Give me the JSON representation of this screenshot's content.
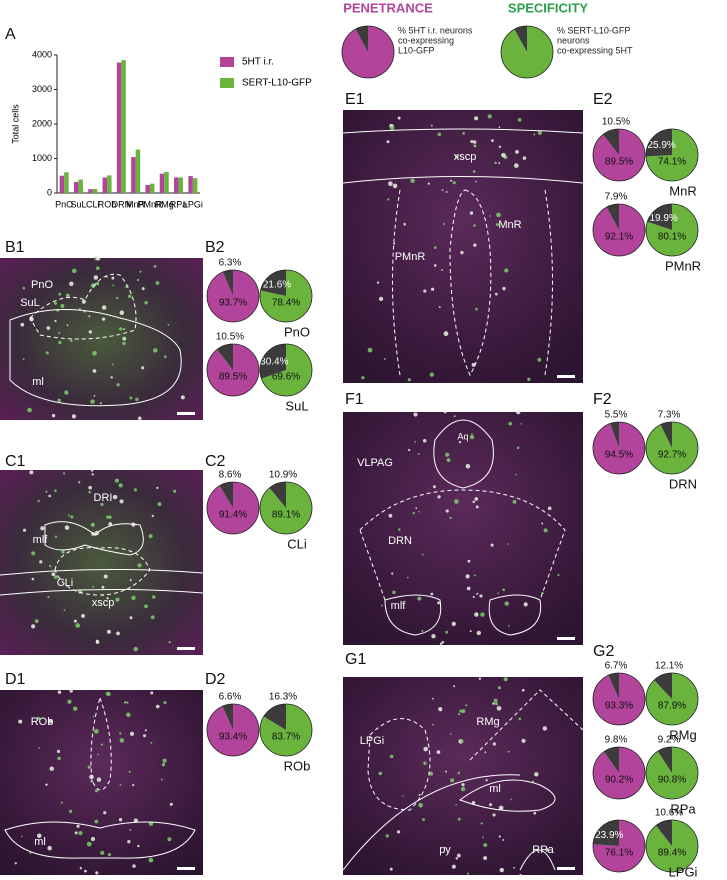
{
  "chart_data": [
    {
      "type": "bar",
      "panel": "A",
      "ylabel": "Total cells",
      "categories": [
        "PnO",
        "SuL",
        "CLi",
        "ROb",
        "DRN",
        "MnR",
        "PMnR",
        "RMg",
        "RPa",
        "LPGi"
      ],
      "series": [
        {
          "name": "5HT i.r.",
          "color": "#b3449b",
          "values": [
            500,
            320,
            110,
            450,
            3780,
            1040,
            230,
            560,
            450,
            490
          ]
        },
        {
          "name": "SERT-L10-GFP",
          "color": "#6ab43e",
          "values": [
            600,
            390,
            115,
            510,
            3850,
            1260,
            270,
            610,
            450,
            430
          ]
        }
      ],
      "ylim": [
        0,
        4000
      ],
      "yticks": [
        0,
        1000,
        2000,
        3000,
        4000
      ]
    },
    {
      "type": "pie-key",
      "title": "PENETRANCE",
      "title_color": "#b3449b",
      "caption": [
        "% 5HT i.r. neurons",
        "co-expressing",
        "L10-GFP"
      ],
      "values": [
        92,
        8
      ],
      "colors": [
        "#b3449b",
        "#3c3c3c"
      ]
    },
    {
      "type": "pie-key",
      "title": "SPECIFICITY",
      "title_color": "#2aa04a",
      "caption": [
        "% SERT-L10-GFP",
        "neurons",
        "co-expressing 5HT"
      ],
      "values": [
        92,
        8
      ],
      "colors": [
        "#6ab43e",
        "#3c3c3c"
      ]
    },
    {
      "type": "pie",
      "panel": "B2",
      "label": "PnO",
      "pies": [
        {
          "values": [
            93.7,
            6.3
          ],
          "value_labels": [
            "93.7%",
            "6.3%"
          ],
          "colors": [
            "#b3449b",
            "#3c3c3c"
          ]
        },
        {
          "values": [
            78.4,
            21.6
          ],
          "value_labels": [
            "78.4%",
            "21.6%"
          ],
          "colors": [
            "#6ab43e",
            "#3c3c3c"
          ]
        }
      ]
    },
    {
      "type": "pie",
      "label": "SuL",
      "pies": [
        {
          "values": [
            89.5,
            10.5
          ],
          "value_labels": [
            "89.5%",
            "10.5%"
          ],
          "colors": [
            "#b3449b",
            "#3c3c3c"
          ]
        },
        {
          "values": [
            69.6,
            30.4
          ],
          "value_labels": [
            "69.6%",
            "30.4%"
          ],
          "colors": [
            "#6ab43e",
            "#3c3c3c"
          ]
        }
      ]
    },
    {
      "type": "pie",
      "panel": "C2",
      "label": "CLi",
      "pies": [
        {
          "values": [
            91.4,
            8.6
          ],
          "value_labels": [
            "91.4%",
            "8.6%"
          ],
          "colors": [
            "#b3449b",
            "#3c3c3c"
          ]
        },
        {
          "values": [
            89.1,
            10.9
          ],
          "value_labels": [
            "89.1%",
            "10.9%"
          ],
          "colors": [
            "#6ab43e",
            "#3c3c3c"
          ]
        }
      ]
    },
    {
      "type": "pie",
      "panel": "D2",
      "label": "ROb",
      "pies": [
        {
          "values": [
            93.4,
            6.6
          ],
          "value_labels": [
            "93.4%",
            "6.6%"
          ],
          "colors": [
            "#b3449b",
            "#3c3c3c"
          ]
        },
        {
          "values": [
            83.7,
            16.3
          ],
          "value_labels": [
            "83.7%",
            "16.3%"
          ],
          "colors": [
            "#6ab43e",
            "#3c3c3c"
          ]
        }
      ]
    },
    {
      "type": "pie",
      "panel": "E2",
      "label": "MnR",
      "pies": [
        {
          "values": [
            89.5,
            10.5
          ],
          "value_labels": [
            "89.5%",
            "10.5%"
          ],
          "colors": [
            "#b3449b",
            "#3c3c3c"
          ]
        },
        {
          "values": [
            74.1,
            25.9
          ],
          "value_labels": [
            "74.1%",
            "25.9%"
          ],
          "colors": [
            "#6ab43e",
            "#3c3c3c"
          ]
        }
      ]
    },
    {
      "type": "pie",
      "label": "PMnR",
      "pies": [
        {
          "values": [
            92.1,
            7.9
          ],
          "value_labels": [
            "92.1%",
            "7.9%"
          ],
          "colors": [
            "#b3449b",
            "#3c3c3c"
          ]
        },
        {
          "values": [
            80.1,
            19.9
          ],
          "value_labels": [
            "80.1%",
            "19.9%"
          ],
          "colors": [
            "#6ab43e",
            "#3c3c3c"
          ]
        }
      ]
    },
    {
      "type": "pie",
      "panel": "F2",
      "label": "DRN",
      "pies": [
        {
          "values": [
            94.5,
            5.5
          ],
          "value_labels": [
            "94.5%",
            "5.5%"
          ],
          "colors": [
            "#b3449b",
            "#3c3c3c"
          ]
        },
        {
          "values": [
            92.7,
            7.3
          ],
          "value_labels": [
            "92.7%",
            "7.3%"
          ],
          "colors": [
            "#6ab43e",
            "#3c3c3c"
          ]
        }
      ]
    },
    {
      "type": "pie",
      "panel": "G2",
      "label": "RMg",
      "pies": [
        {
          "values": [
            93.3,
            6.7
          ],
          "value_labels": [
            "93.3%",
            "6.7%"
          ],
          "colors": [
            "#b3449b",
            "#3c3c3c"
          ]
        },
        {
          "values": [
            87.9,
            12.1
          ],
          "value_labels": [
            "87.9%",
            "12.1%"
          ],
          "colors": [
            "#6ab43e",
            "#3c3c3c"
          ]
        }
      ]
    },
    {
      "type": "pie",
      "label": "RPa",
      "pies": [
        {
          "values": [
            90.2,
            9.8
          ],
          "value_labels": [
            "90.2%",
            "9.8%"
          ],
          "colors": [
            "#b3449b",
            "#3c3c3c"
          ]
        },
        {
          "values": [
            90.8,
            9.2
          ],
          "value_labels": [
            "90.8%",
            "9.2%"
          ],
          "colors": [
            "#6ab43e",
            "#3c3c3c"
          ]
        }
      ]
    },
    {
      "type": "pie",
      "label": "LPGi",
      "pies": [
        {
          "values": [
            76.1,
            23.9
          ],
          "value_labels": [
            "76.1%",
            "23.9%"
          ],
          "colors": [
            "#b3449b",
            "#3c3c3c"
          ]
        },
        {
          "values": [
            89.4,
            10.6
          ],
          "value_labels": [
            "89.4%",
            "10.6%"
          ],
          "colors": [
            "#6ab43e",
            "#3c3c3c"
          ]
        }
      ]
    }
  ],
  "images": [
    {
      "panel": "B1",
      "labels": [
        "PnO",
        "SuL",
        "ml"
      ]
    },
    {
      "panel": "C1",
      "labels": [
        "DRI",
        "mlf",
        "CLi",
        "xscp"
      ]
    },
    {
      "panel": "D1",
      "labels": [
        "ROb",
        "ml"
      ]
    },
    {
      "panel": "E1",
      "labels": [
        "xscp",
        "MnR",
        "PMnR"
      ]
    },
    {
      "panel": "F1",
      "labels": [
        "Aq",
        "VLPAG",
        "DRN",
        "mlf"
      ]
    },
    {
      "panel": "G1",
      "labels": [
        "RMg",
        "LPGi",
        "ml",
        "py",
        "RPa"
      ]
    }
  ]
}
